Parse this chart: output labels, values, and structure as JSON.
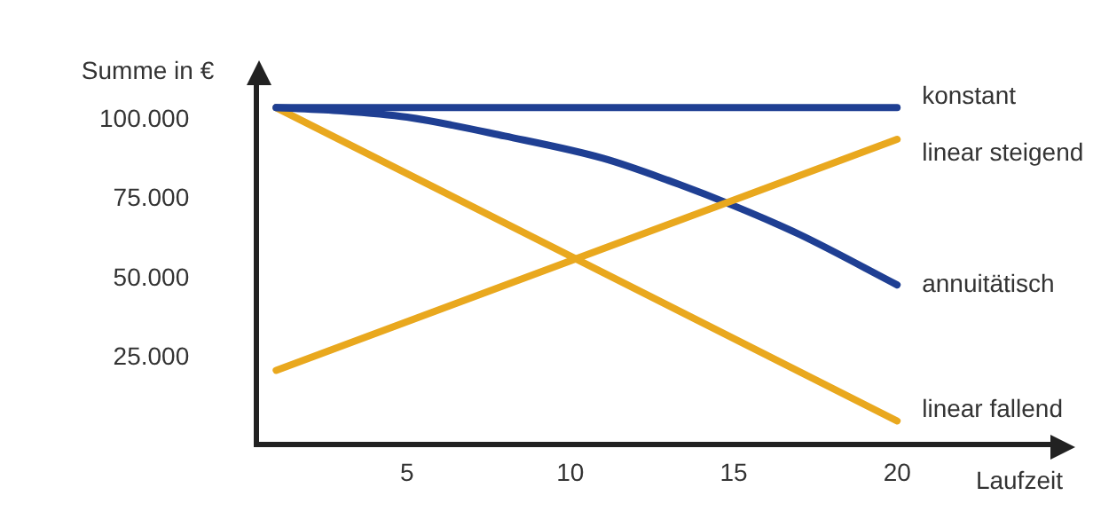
{
  "chart_data": {
    "type": "line",
    "xlabel": "Laufzeit",
    "ylabel": "Summe in €",
    "legend": false,
    "grid": false,
    "marker": "none",
    "line_style": "solid",
    "xlim": [
      0.4,
      24.8
    ],
    "xticks": [
      5,
      10,
      15,
      20
    ],
    "ylim": [
      -2500,
      112000
    ],
    "yticks": [
      {
        "value": 25000,
        "label": "25.000"
      },
      {
        "value": 50000,
        "label": "50.000"
      },
      {
        "value": 75000,
        "label": "75.000"
      },
      {
        "value": 100000,
        "label": "100.000"
      }
    ],
    "series": [
      {
        "name": "konstant",
        "color": "#1f3f93",
        "x": [
          1,
          20
        ],
        "values": [
          104000,
          104000
        ]
      },
      {
        "name": "linear steigend",
        "color": "#e9a81e",
        "x": [
          1,
          20
        ],
        "values": [
          21000,
          94000
        ]
      },
      {
        "name": "annuitätisch",
        "color": "#1f3f93",
        "x": [
          1,
          3,
          5,
          8,
          11,
          13,
          15,
          17,
          20
        ],
        "values": [
          104000,
          103000,
          101000,
          95000,
          88000,
          81000,
          73000,
          64000,
          48000
        ]
      },
      {
        "name": "linear fallend",
        "color": "#e9a81e",
        "x": [
          1,
          20
        ],
        "values": [
          104000,
          5000
        ]
      }
    ]
  }
}
